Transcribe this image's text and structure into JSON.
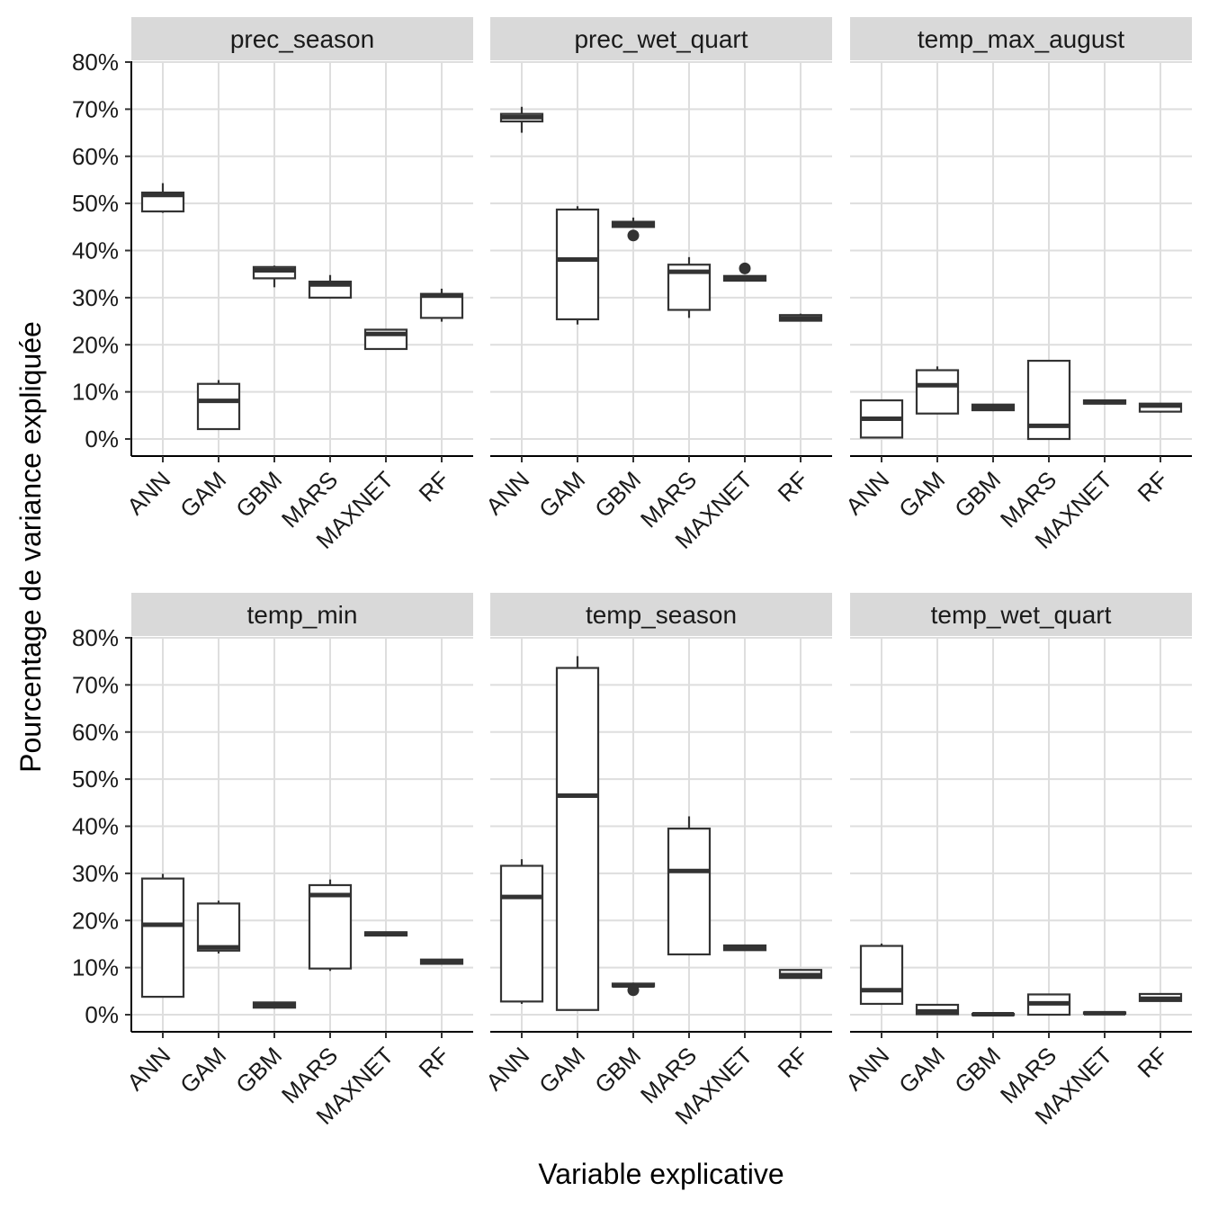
{
  "chart_data": {
    "type": "boxplot",
    "xlabel": "Variable explicative",
    "ylabel": "Pourcentage de variance expliquée",
    "ylim": [
      -0.02,
      0.8
    ],
    "y_ticks": [
      0,
      0.1,
      0.2,
      0.3,
      0.4,
      0.5,
      0.6,
      0.7,
      0.8
    ],
    "y_tick_labels": [
      "0%",
      "10%",
      "20%",
      "30%",
      "40%",
      "50%",
      "60%",
      "70%",
      "80%"
    ],
    "categories": [
      "ANN",
      "GAM",
      "GBM",
      "MARS",
      "MAXNET",
      "RF"
    ],
    "facets": [
      {
        "name": "prec_season",
        "boxes": [
          {
            "model": "ANN",
            "min": 0.48,
            "q1": 0.483,
            "median": 0.518,
            "q3": 0.523,
            "max": 0.543,
            "outliers": []
          },
          {
            "model": "GAM",
            "min": 0.021,
            "q1": 0.021,
            "median": 0.081,
            "q3": 0.117,
            "max": 0.125,
            "outliers": []
          },
          {
            "model": "GBM",
            "min": 0.322,
            "q1": 0.341,
            "median": 0.358,
            "q3": 0.365,
            "max": 0.368,
            "outliers": []
          },
          {
            "model": "MARS",
            "min": 0.3,
            "q1": 0.3,
            "median": 0.328,
            "q3": 0.334,
            "max": 0.348,
            "outliers": []
          },
          {
            "model": "MAXNET",
            "min": 0.189,
            "q1": 0.191,
            "median": 0.223,
            "q3": 0.232,
            "max": 0.233,
            "outliers": []
          },
          {
            "model": "RF",
            "min": 0.249,
            "q1": 0.257,
            "median": 0.304,
            "q3": 0.308,
            "max": 0.319,
            "outliers": []
          }
        ]
      },
      {
        "name": "prec_wet_quart",
        "boxes": [
          {
            "model": "ANN",
            "min": 0.65,
            "q1": 0.674,
            "median": 0.683,
            "q3": 0.69,
            "max": 0.705,
            "outliers": []
          },
          {
            "model": "GAM",
            "min": 0.243,
            "q1": 0.254,
            "median": 0.381,
            "q3": 0.487,
            "max": 0.494,
            "outliers": []
          },
          {
            "model": "GBM",
            "min": 0.449,
            "q1": 0.45,
            "median": 0.455,
            "q3": 0.461,
            "max": 0.47,
            "outliers": [
              0.432
            ]
          },
          {
            "model": "MARS",
            "min": 0.257,
            "q1": 0.274,
            "median": 0.355,
            "q3": 0.37,
            "max": 0.386,
            "outliers": []
          },
          {
            "model": "MAXNET",
            "min": 0.336,
            "q1": 0.336,
            "median": 0.34,
            "q3": 0.346,
            "max": 0.346,
            "outliers": [
              0.362
            ]
          },
          {
            "model": "RF",
            "min": 0.251,
            "q1": 0.251,
            "median": 0.256,
            "q3": 0.263,
            "max": 0.266,
            "outliers": []
          }
        ]
      },
      {
        "name": "temp_max_august",
        "boxes": [
          {
            "model": "ANN",
            "min": 0.003,
            "q1": 0.003,
            "median": 0.043,
            "q3": 0.082,
            "max": 0.083,
            "outliers": []
          },
          {
            "model": "GAM",
            "min": 0.054,
            "q1": 0.054,
            "median": 0.114,
            "q3": 0.146,
            "max": 0.154,
            "outliers": []
          },
          {
            "model": "GBM",
            "min": 0.059,
            "q1": 0.061,
            "median": 0.067,
            "q3": 0.073,
            "max": 0.074,
            "outliers": []
          },
          {
            "model": "MARS",
            "min": 0.0,
            "q1": 0.0,
            "median": 0.028,
            "q3": 0.166,
            "max": 0.168,
            "outliers": []
          },
          {
            "model": "MAXNET",
            "min": 0.073,
            "q1": 0.075,
            "median": 0.078,
            "q3": 0.082,
            "max": 0.083,
            "outliers": []
          },
          {
            "model": "RF",
            "min": 0.056,
            "q1": 0.058,
            "median": 0.071,
            "q3": 0.075,
            "max": 0.075,
            "outliers": []
          }
        ]
      },
      {
        "name": "temp_min",
        "boxes": [
          {
            "model": "ANN",
            "min": 0.037,
            "q1": 0.038,
            "median": 0.191,
            "q3": 0.289,
            "max": 0.299,
            "outliers": []
          },
          {
            "model": "GAM",
            "min": 0.13,
            "q1": 0.136,
            "median": 0.143,
            "q3": 0.236,
            "max": 0.242,
            "outliers": []
          },
          {
            "model": "GBM",
            "min": 0.013,
            "q1": 0.015,
            "median": 0.021,
            "q3": 0.026,
            "max": 0.027,
            "outliers": []
          },
          {
            "model": "MARS",
            "min": 0.093,
            "q1": 0.098,
            "median": 0.254,
            "q3": 0.275,
            "max": 0.287,
            "outliers": []
          },
          {
            "model": "MAXNET",
            "min": 0.166,
            "q1": 0.168,
            "median": 0.172,
            "q3": 0.175,
            "max": 0.176,
            "outliers": []
          },
          {
            "model": "RF",
            "min": 0.108,
            "q1": 0.108,
            "median": 0.111,
            "q3": 0.117,
            "max": 0.118,
            "outliers": []
          }
        ]
      },
      {
        "name": "temp_season",
        "boxes": [
          {
            "model": "ANN",
            "min": 0.023,
            "q1": 0.028,
            "median": 0.25,
            "q3": 0.316,
            "max": 0.33,
            "outliers": []
          },
          {
            "model": "GAM",
            "min": 0.01,
            "q1": 0.01,
            "median": 0.465,
            "q3": 0.736,
            "max": 0.761,
            "outliers": []
          },
          {
            "model": "GBM",
            "min": 0.06,
            "q1": 0.06,
            "median": 0.062,
            "q3": 0.066,
            "max": 0.068,
            "outliers": [
              0.052
            ]
          },
          {
            "model": "MARS",
            "min": 0.128,
            "q1": 0.128,
            "median": 0.305,
            "q3": 0.395,
            "max": 0.421,
            "outliers": []
          },
          {
            "model": "MAXNET",
            "min": 0.136,
            "q1": 0.137,
            "median": 0.141,
            "q3": 0.147,
            "max": 0.148,
            "outliers": []
          },
          {
            "model": "RF",
            "min": 0.078,
            "q1": 0.078,
            "median": 0.084,
            "q3": 0.095,
            "max": 0.095,
            "outliers": []
          }
        ]
      },
      {
        "name": "temp_wet_quart",
        "boxes": [
          {
            "model": "ANN",
            "min": 0.023,
            "q1": 0.023,
            "median": 0.052,
            "q3": 0.146,
            "max": 0.151,
            "outliers": []
          },
          {
            "model": "GAM",
            "min": 0.001,
            "q1": 0.001,
            "median": 0.007,
            "q3": 0.021,
            "max": 0.022,
            "outliers": []
          },
          {
            "model": "GBM",
            "min": 0.0,
            "q1": 0.0,
            "median": 0.001,
            "q3": 0.002,
            "max": 0.002,
            "outliers": []
          },
          {
            "model": "MARS",
            "min": 0.0,
            "q1": 0.0,
            "median": 0.024,
            "q3": 0.043,
            "max": 0.044,
            "outliers": []
          },
          {
            "model": "MAXNET",
            "min": 0.002,
            "q1": 0.002,
            "median": 0.003,
            "q3": 0.005,
            "max": 0.005,
            "outliers": []
          },
          {
            "model": "RF",
            "min": 0.029,
            "q1": 0.029,
            "median": 0.034,
            "q3": 0.044,
            "max": 0.045,
            "outliers": []
          }
        ]
      }
    ]
  }
}
